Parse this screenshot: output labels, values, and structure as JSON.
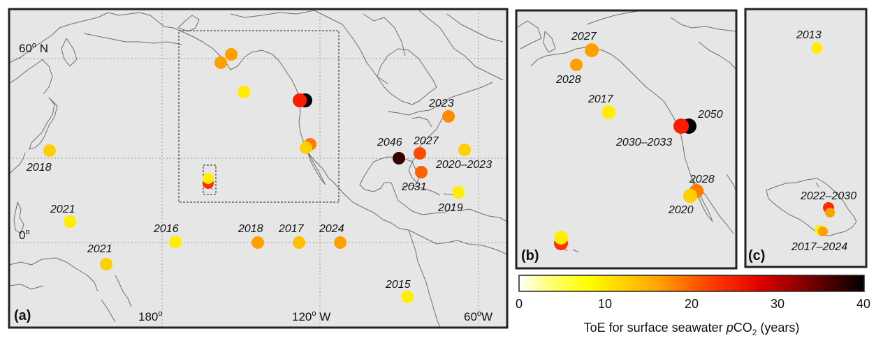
{
  "panels": {
    "a": {
      "tag": "(a)"
    },
    "b": {
      "tag": "(b)"
    },
    "c": {
      "tag": "(c)"
    }
  },
  "axis_labels": {
    "lat_60n": "60",
    "lat_60n_sup": "o",
    "lat_60n_suffix": " N",
    "lat_0": "0",
    "lat_0_sup": "o",
    "lon_180": "180",
    "lon_180_sup": "o",
    "lon_120w": "120",
    "lon_120w_sup": "o",
    "lon_120w_suffix": " W",
    "lon_60w": "60",
    "lon_60w_sup": "o",
    "lon_60w_suffix": "W"
  },
  "colorbar": {
    "ticks": [
      "0",
      "10",
      "20",
      "30",
      "40"
    ],
    "title_pre": "ToE for surface seawater ",
    "title_italic": "p",
    "title_mid": "CO",
    "title_sub": "2",
    "title_post": " (years)",
    "stops": [
      "#ffffff",
      "#ffff00",
      "#ffa500",
      "#ff0000",
      "#000000"
    ]
  },
  "labels_a": [
    "2018",
    "2021",
    "2021",
    "2016",
    "2018",
    "2017",
    "2024",
    "2046",
    "2027",
    "2023",
    "2020–2023",
    "2031",
    "2019",
    "2015"
  ],
  "labels_b": [
    "2027",
    "2028",
    "2017",
    "2050",
    "2030–2033",
    "2028",
    "2020"
  ],
  "labels_c": [
    "2013",
    "2022–2030",
    "2017–2024"
  ],
  "station_colors": {
    "yellow": "#ffee00",
    "yellow_orange": "#ffd000",
    "orange": "#ffa000",
    "dark_orange": "#ff7a00",
    "red_orange": "#ff4a00",
    "red": "#ff1a00",
    "dark_red": "#3a0000",
    "black": "#000000"
  }
}
